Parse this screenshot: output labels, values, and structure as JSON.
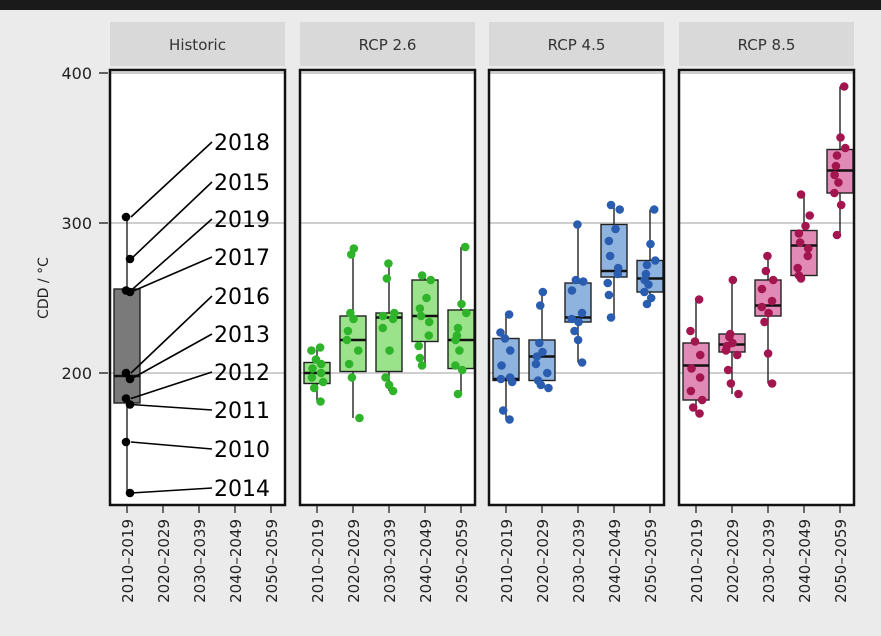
{
  "colors": {
    "background": "#ebebeb",
    "panel": "#ffffff",
    "strip": "#d9d9d9",
    "gridline": "#bfbfbf",
    "historic_fill": "#7a7a7a",
    "historic_point": "#000000",
    "rcp26_fill": "#9be38a",
    "rcp26_point": "#2fb32a",
    "rcp45_fill": "#8fb3df",
    "rcp45_point": "#2a5db0",
    "rcp85_fill": "#e08ab5",
    "rcp85_point": "#a3154f"
  },
  "chart_data": {
    "type": "box",
    "ylabel": "CDD / °C",
    "yticks": [
      200,
      300,
      400
    ],
    "ylim": [
      112,
      402
    ],
    "categories": [
      "2010–2019",
      "2020–2029",
      "2030–2039",
      "2040–2049",
      "2050–2059"
    ],
    "grid": "horizontal at y ticks",
    "panels": [
      {
        "label": "Historic",
        "boxes": [
          {
            "category": "2010–2019",
            "q1": 180,
            "median": 198,
            "q3": 256,
            "whisker_low": 120,
            "whisker_high": 304,
            "points": [
              304,
              276,
              255,
              254,
              200,
              196,
              183,
              179,
              154,
              120
            ]
          }
        ],
        "year_labels": [
          {
            "year": "2018",
            "value": 304
          },
          {
            "year": "2015",
            "value": 276
          },
          {
            "year": "2019",
            "value": 255
          },
          {
            "year": "2017",
            "value": 254
          },
          {
            "year": "2016",
            "value": 200
          },
          {
            "year": "2013",
            "value": 196
          },
          {
            "year": "2012",
            "value": 183
          },
          {
            "year": "2011",
            "value": 179
          },
          {
            "year": "2010",
            "value": 154
          },
          {
            "year": "2014",
            "value": 120
          }
        ]
      },
      {
        "label": "RCP 2.6",
        "boxes": [
          {
            "category": "2010–2019",
            "q1": 193,
            "median": 200,
            "q3": 207,
            "whisker_low": 181,
            "whisker_high": 217,
            "points": [
              217,
              215,
              209,
              206,
              203,
              200,
              197,
              194,
              190,
              181
            ]
          },
          {
            "category": "2020–2029",
            "q1": 201,
            "median": 222,
            "q3": 238,
            "whisker_low": 170,
            "whisker_high": 283,
            "points": [
              283,
              279,
              240,
              236,
              228,
              222,
              215,
              206,
              197,
              170
            ]
          },
          {
            "category": "2030–2039",
            "q1": 201,
            "median": 237,
            "q3": 240,
            "whisker_low": 188,
            "whisker_high": 273,
            "points": [
              273,
              263,
              240,
              238,
              236,
              230,
              215,
              197,
              192,
              188
            ]
          },
          {
            "category": "2040–2049",
            "q1": 221,
            "median": 238,
            "q3": 262,
            "whisker_low": 205,
            "whisker_high": 265,
            "points": [
              265,
              262,
              250,
              243,
              238,
              234,
              225,
              218,
              210,
              205
            ]
          },
          {
            "category": "2050–2059",
            "q1": 203,
            "median": 222,
            "q3": 242,
            "whisker_low": 186,
            "whisker_high": 284,
            "points": [
              284,
              246,
              240,
              230,
              225,
              222,
              215,
              205,
              202,
              186
            ]
          }
        ]
      },
      {
        "label": "RCP 4.5",
        "boxes": [
          {
            "category": "2010–2019",
            "q1": 195,
            "median": 196,
            "q3": 223,
            "whisker_low": 169,
            "whisker_high": 239,
            "points": [
              239,
              227,
              223,
              215,
              205,
              197,
              196,
              194,
              175,
              169
            ]
          },
          {
            "category": "2020–2029",
            "q1": 195,
            "median": 211,
            "q3": 222,
            "whisker_low": 190,
            "whisker_high": 254,
            "points": [
              254,
              245,
              220,
              214,
              211,
              206,
              200,
              195,
              192,
              190
            ]
          },
          {
            "category": "2030–2039",
            "q1": 234,
            "median": 237,
            "q3": 260,
            "whisker_low": 207,
            "whisker_high": 299,
            "points": [
              299,
              262,
              261,
              255,
              240,
              236,
              234,
              228,
              222,
              207
            ]
          },
          {
            "category": "2040–2049",
            "q1": 264,
            "median": 268,
            "q3": 299,
            "whisker_low": 237,
            "whisker_high": 312,
            "points": [
              312,
              309,
              296,
              288,
              278,
              270,
              266,
              260,
              252,
              237
            ]
          },
          {
            "category": "2050–2059",
            "q1": 254,
            "median": 263,
            "q3": 275,
            "whisker_low": 246,
            "whisker_high": 309,
            "points": [
              309,
              286,
              275,
              272,
              266,
              262,
              259,
              254,
              250,
              246
            ]
          }
        ]
      },
      {
        "label": "RCP 8.5",
        "boxes": [
          {
            "category": "2010–2019",
            "q1": 182,
            "median": 205,
            "q3": 220,
            "whisker_low": 173,
            "whisker_high": 249,
            "points": [
              249,
              228,
              221,
              212,
              203,
              197,
              188,
              182,
              177,
              173
            ]
          },
          {
            "category": "2020–2029",
            "q1": 214,
            "median": 219,
            "q3": 226,
            "whisker_low": 186,
            "whisker_high": 262,
            "points": [
              262,
              226,
              224,
              220,
              218,
              215,
              212,
              202,
              193,
              186
            ]
          },
          {
            "category": "2030–2039",
            "q1": 238,
            "median": 245,
            "q3": 262,
            "whisker_low": 193,
            "whisker_high": 278,
            "points": [
              278,
              268,
              262,
              256,
              248,
              244,
              240,
              234,
              213,
              193
            ]
          },
          {
            "category": "2040–2049",
            "q1": 265,
            "median": 285,
            "q3": 295,
            "whisker_low": 263,
            "whisker_high": 319,
            "points": [
              319,
              305,
              298,
              293,
              287,
              283,
              278,
              270,
              265,
              263
            ]
          },
          {
            "category": "2050–2059",
            "q1": 320,
            "median": 335,
            "q3": 349,
            "whisker_low": 292,
            "whisker_high": 391,
            "points": [
              391,
              357,
              350,
              345,
              338,
              332,
              327,
              320,
              312,
              292
            ]
          }
        ]
      }
    ]
  }
}
